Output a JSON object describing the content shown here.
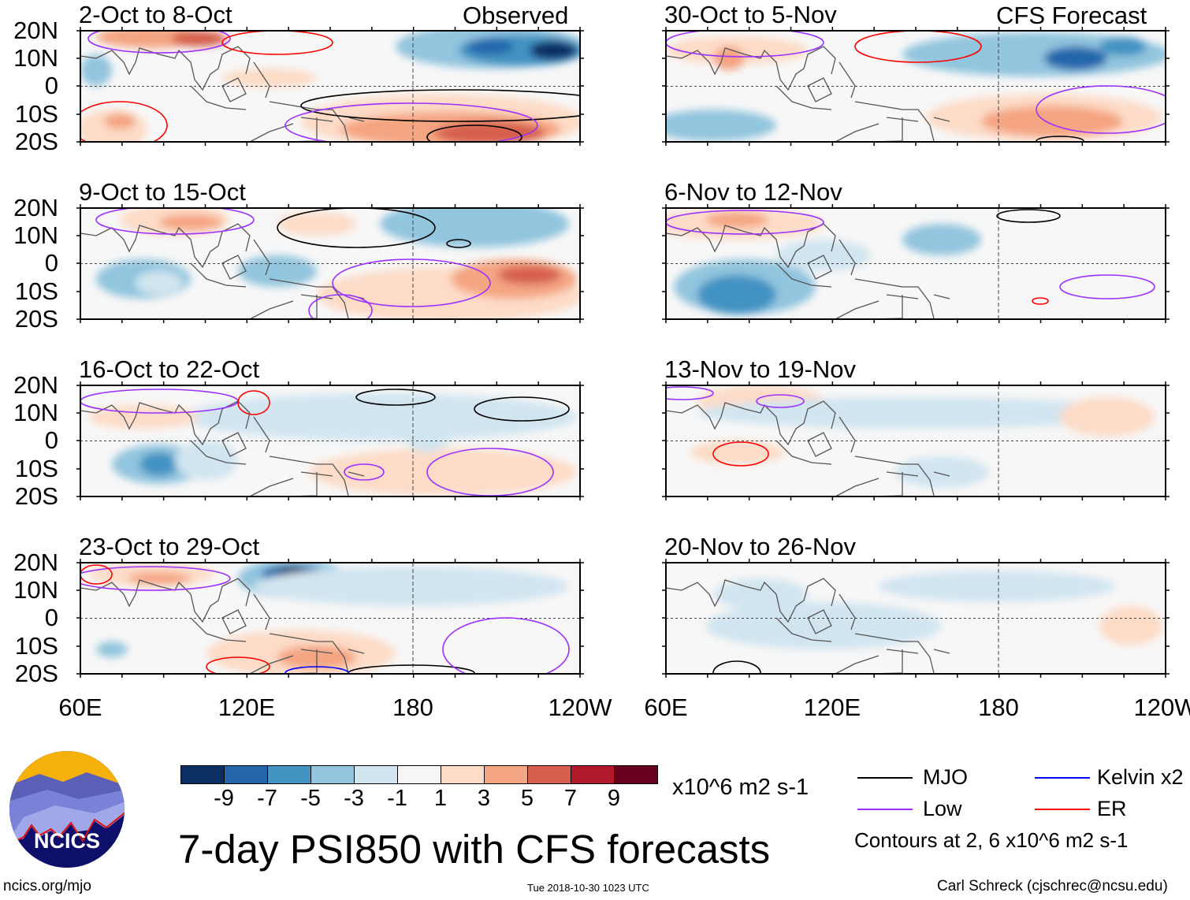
{
  "figure_title": "7-day PSI850 with CFS forecasts",
  "headers": {
    "observed": "Observed",
    "forecast": "CFS Forecast"
  },
  "panels_left": [
    "2-Oct to 8-Oct",
    "9-Oct to 15-Oct",
    "16-Oct to 22-Oct",
    "23-Oct to 29-Oct"
  ],
  "panels_right": [
    "30-Oct to 5-Nov",
    "6-Nov to 12-Nov",
    "13-Nov to 19-Nov",
    "20-Nov to 26-Nov"
  ],
  "lat_labels": [
    "20N",
    "10N",
    "0",
    "10S",
    "20S"
  ],
  "lon_labels": [
    "60E",
    "120E",
    "180",
    "120W"
  ],
  "colorbar": {
    "colors": [
      "#0b2f63",
      "#2466ac",
      "#4393c3",
      "#92c5de",
      "#d1e5f0",
      "#f7f7f7",
      "#fddbc7",
      "#f4a582",
      "#d6604d",
      "#b2182b",
      "#67001f"
    ],
    "labels": [
      "-9",
      "-7",
      "-5",
      "-3",
      "-1",
      "1",
      "3",
      "5",
      "7",
      "9"
    ],
    "units": "x10^6 m2 s-1"
  },
  "legend": {
    "items": [
      {
        "label": "MJO",
        "color": "#000000"
      },
      {
        "label": "Kelvin x2",
        "color": "#0000ff"
      },
      {
        "label": "Low",
        "color": "#9b30ff"
      },
      {
        "label": "ER",
        "color": "#ff0000"
      }
    ],
    "note": "Contours at 2, 6 x10^6 m2 s-1"
  },
  "logo": {
    "text": "NCICS"
  },
  "footer": {
    "url": "ncics.org/mjo",
    "timestamp": "Tue 2018-10-30 1023 UTC",
    "author": "Carl Schreck (cjschrec@ncsu.edu)"
  }
}
